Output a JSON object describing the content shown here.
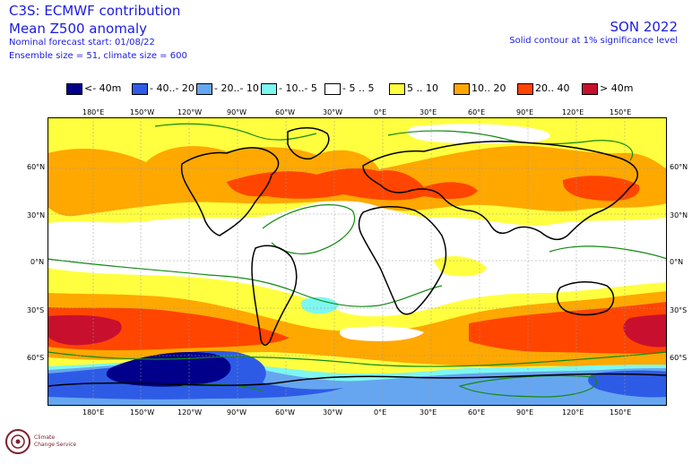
{
  "header": {
    "line1": "C3S: ECMWF contribution",
    "line2": "Mean Z500 anomaly",
    "line3": "Nominal forecast start: 01/08/22",
    "line4": "Ensemble size = 51, climate size = 600",
    "season": "SON 2022",
    "note": "Solid contour at 1% significance level"
  },
  "legend": [
    {
      "label": "<- 40m",
      "color": "#00008b"
    },
    {
      "label": "- 40..- 20",
      "color": "#2e5be6"
    },
    {
      "label": "- 20..- 10",
      "color": "#66a6f0"
    },
    {
      "label": "- 10..- 5",
      "color": "#7ef7f0"
    },
    {
      "label": "- 5 .. 5",
      "color": "#ffffff"
    },
    {
      "label": "5 .. 10",
      "color": "#ffff40"
    },
    {
      "label": "10.. 20",
      "color": "#ffa800"
    },
    {
      "label": "20.. 40",
      "color": "#ff4500"
    },
    {
      "label": "> 40m",
      "color": "#c8102e"
    }
  ],
  "axes": {
    "lon_labels": [
      "180°E",
      "150°W",
      "120°W",
      "90°W",
      "60°W",
      "30°W",
      "0°E",
      "30°E",
      "60°E",
      "90°E",
      "120°E",
      "150°E"
    ],
    "lat_labels": [
      "60°N",
      "30°N",
      "0°N",
      "30°S",
      "60°S"
    ]
  },
  "logo": {
    "line1": "Climate",
    "line2": "Change Service"
  }
}
